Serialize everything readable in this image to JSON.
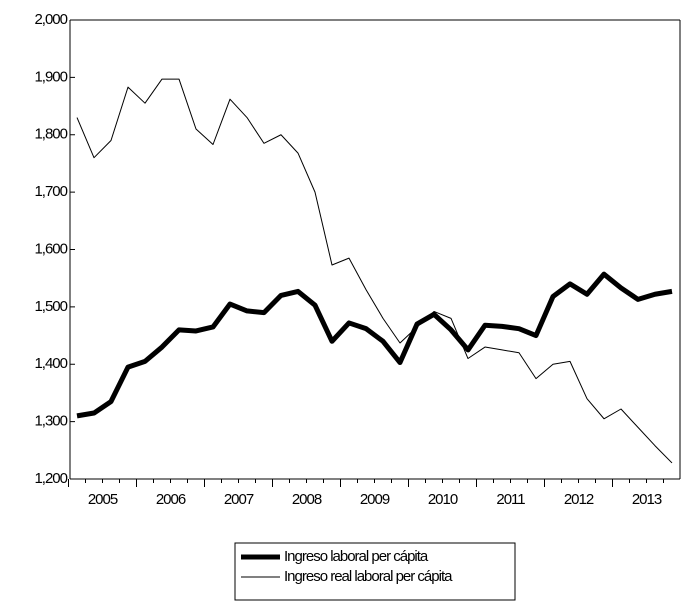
{
  "chart_data": {
    "type": "line",
    "categories": [
      "2005",
      null,
      null,
      null,
      "2006",
      null,
      null,
      null,
      "2007",
      null,
      null,
      null,
      "2008",
      null,
      null,
      null,
      "2009",
      null,
      null,
      null,
      "2010",
      null,
      null,
      null,
      "2011",
      null,
      null,
      null,
      "2012",
      null,
      null,
      null,
      "2013",
      null,
      null,
      null
    ],
    "series": [
      {
        "name": "Ingreso laboral per cápita",
        "color": "#000000",
        "width": 5,
        "values": [
          1310,
          1315,
          1335,
          1395,
          1405,
          1430,
          1460,
          1458,
          1465,
          1505,
          1493,
          1490,
          1520,
          1527,
          1503,
          1440,
          1472,
          1462,
          1440,
          1403,
          1470,
          1487,
          1460,
          1425,
          1468,
          1466,
          1462,
          1450,
          1518,
          1540,
          1522,
          1557,
          1533,
          1513,
          1522,
          1527
        ]
      },
      {
        "name": "Ingreso real laboral per cápita",
        "color": "#000000",
        "width": 1,
        "values": [
          1830,
          1760,
          1790,
          1883,
          1855,
          1897,
          1897,
          1810,
          1783,
          1862,
          1830,
          1785,
          1800,
          1768,
          1700,
          1573,
          1585,
          1530,
          1480,
          1437,
          1465,
          1492,
          1480,
          1410,
          1430,
          1425,
          1420,
          1375,
          1400,
          1405,
          1340,
          1305,
          1322,
          1290,
          1258,
          1228
        ]
      }
    ],
    "ylim": [
      1200,
      2000
    ],
    "yticks": [
      {
        "value": 1200,
        "label": "1,200"
      },
      {
        "value": 1300,
        "label": "1,300"
      },
      {
        "value": 1400,
        "label": "1,400"
      },
      {
        "value": 1500,
        "label": "1,500"
      },
      {
        "value": 1600,
        "label": "1,600"
      },
      {
        "value": 1700,
        "label": "1,700"
      },
      {
        "value": 1800,
        "label": "1,800"
      },
      {
        "value": 1900,
        "label": "1,900"
      },
      {
        "value": 2000,
        "label": "2,000"
      }
    ],
    "legend": "bottom"
  }
}
